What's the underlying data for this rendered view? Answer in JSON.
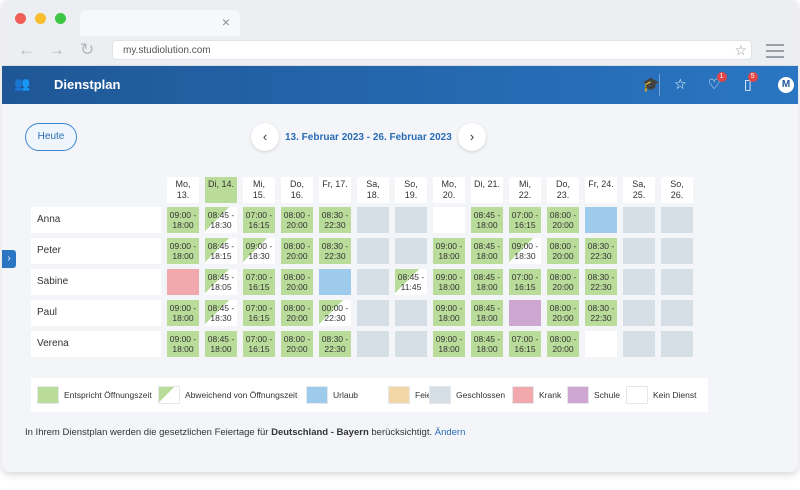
{
  "browser": {
    "url": "my.studiolution.com"
  },
  "app": {
    "title": "Dienstplan",
    "badges": {
      "heart": "1",
      "clipboard": "5"
    },
    "avatar_letter": "M"
  },
  "toolbar": {
    "today_label": "Heute",
    "prev": "‹",
    "next": "›",
    "range": "13. Februar 2023 - 26. Februar 2023"
  },
  "days": [
    [
      "Mo,",
      "13."
    ],
    [
      "Di, 14.",
      ""
    ],
    [
      "Mi,",
      "15."
    ],
    [
      "Do,",
      "16."
    ],
    [
      "Fr, 17.",
      ""
    ],
    [
      "Sa,",
      "18."
    ],
    [
      "So,",
      "19."
    ],
    [
      "Mo,",
      "20."
    ],
    [
      "Di, 21.",
      ""
    ],
    [
      "Mi,",
      "22."
    ],
    [
      "Do,",
      "23."
    ],
    [
      "Fr, 24.",
      ""
    ],
    [
      "Sa,",
      "25."
    ],
    [
      "So,",
      "26."
    ]
  ],
  "staff": [
    {
      "name": "Anna",
      "cells": [
        [
          "g",
          "09:00 -",
          "18:00"
        ],
        [
          "dev",
          "08:45 -",
          "18:30"
        ],
        [
          "g",
          "07:00 -",
          "16:15"
        ],
        [
          "g",
          "08:00 -",
          "20:00"
        ],
        [
          "g",
          "08:30 -",
          "22:30"
        ],
        [
          "c",
          "",
          ""
        ],
        [
          "c",
          "",
          ""
        ],
        [
          "n",
          "",
          ""
        ],
        [
          "g",
          "08:45 -",
          "18:00"
        ],
        [
          "g",
          "07:00 -",
          "16:15"
        ],
        [
          "g",
          "08:00 -",
          "20:00"
        ],
        [
          "u",
          "",
          ""
        ],
        [
          "c",
          "",
          ""
        ],
        [
          "c",
          "",
          ""
        ]
      ]
    },
    {
      "name": "Peter",
      "cells": [
        [
          "g",
          "09:00 -",
          "18:00"
        ],
        [
          "dev",
          "08:45 -",
          "18:15"
        ],
        [
          "dev",
          "09:00 -",
          "18:30"
        ],
        [
          "g",
          "08:00 -",
          "20:00"
        ],
        [
          "g",
          "08:30 -",
          "22:30"
        ],
        [
          "c",
          "",
          ""
        ],
        [
          "c",
          "",
          ""
        ],
        [
          "g",
          "09:00 -",
          "18:00"
        ],
        [
          "g",
          "08:45 -",
          "18:00"
        ],
        [
          "dev",
          "09:00 -",
          "18:30"
        ],
        [
          "g",
          "08:00 -",
          "20:00"
        ],
        [
          "g",
          "08:30 -",
          "22:30"
        ],
        [
          "c",
          "",
          ""
        ],
        [
          "c",
          "",
          ""
        ]
      ]
    },
    {
      "name": "Sabine",
      "cells": [
        [
          "k",
          "",
          ""
        ],
        [
          "dev",
          "08:45 -",
          "18:05"
        ],
        [
          "g",
          "07:00 -",
          "16:15"
        ],
        [
          "g",
          "08:00 -",
          "20:00"
        ],
        [
          "u",
          "",
          ""
        ],
        [
          "c",
          "",
          ""
        ],
        [
          "dev",
          "08:45 -",
          "11:45"
        ],
        [
          "g",
          "09:00 -",
          "18:00"
        ],
        [
          "g",
          "08:45 -",
          "18:00"
        ],
        [
          "g",
          "07:00 -",
          "16:15"
        ],
        [
          "g",
          "08:00 -",
          "20:00"
        ],
        [
          "g",
          "08:30 -",
          "22:30"
        ],
        [
          "c",
          "",
          ""
        ],
        [
          "c",
          "",
          ""
        ]
      ]
    },
    {
      "name": "Paul",
      "cells": [
        [
          "g",
          "09:00 -",
          "18:00"
        ],
        [
          "dev",
          "08:45 -",
          "18:30"
        ],
        [
          "g",
          "07:00 -",
          "16:15"
        ],
        [
          "g",
          "08:00 -",
          "20:00"
        ],
        [
          "dev",
          "00:00 -",
          "22:30"
        ],
        [
          "c",
          "",
          ""
        ],
        [
          "c",
          "",
          ""
        ],
        [
          "g",
          "09:00 -",
          "18:00"
        ],
        [
          "g",
          "08:45 -",
          "18:00"
        ],
        [
          "s",
          "",
          ""
        ],
        [
          "g",
          "08:00 -",
          "20:00"
        ],
        [
          "g",
          "08:30 -",
          "22:30"
        ],
        [
          "c",
          "",
          ""
        ],
        [
          "c",
          "",
          ""
        ]
      ]
    },
    {
      "name": "Verena",
      "cells": [
        [
          "g",
          "09:00 -",
          "18:00"
        ],
        [
          "g",
          "08:45 -",
          "18:00"
        ],
        [
          "g",
          "07:00 -",
          "16:15"
        ],
        [
          "g",
          "08:00 -",
          "20:00"
        ],
        [
          "g",
          "08:30 -",
          "22:30"
        ],
        [
          "c",
          "",
          ""
        ],
        [
          "c",
          "",
          ""
        ],
        [
          "g",
          "09:00 -",
          "18:00"
        ],
        [
          "g",
          "08:45 -",
          "18:00"
        ],
        [
          "g",
          "07:00 -",
          "16:15"
        ],
        [
          "g",
          "08:00 -",
          "20:00"
        ],
        [
          "n",
          "",
          ""
        ],
        [
          "c",
          "",
          ""
        ],
        [
          "c",
          "",
          ""
        ]
      ]
    }
  ],
  "legend": [
    {
      "key": "g",
      "label": "Entspricht Öffnungszeit"
    },
    {
      "key": "dev",
      "label": "Abweichend von Öffnungszeit"
    },
    {
      "key": "u",
      "label": "Urlaub"
    },
    {
      "key": "f",
      "label": "Feiertag",
      "color": "#f3d7a6"
    },
    {
      "key": "c",
      "label": "Geschlossen"
    },
    {
      "key": "k",
      "label": "Krank"
    },
    {
      "key": "s",
      "label": "Schule"
    },
    {
      "key": "n",
      "label": "Kein Dienst"
    }
  ],
  "note": {
    "pre": "In Ihrem Dienstplan werden die gesetzlichen Feiertage für ",
    "bold": "Deutschland - Bayern",
    "post": " berücksichtigt. ",
    "link": "Ändern"
  }
}
